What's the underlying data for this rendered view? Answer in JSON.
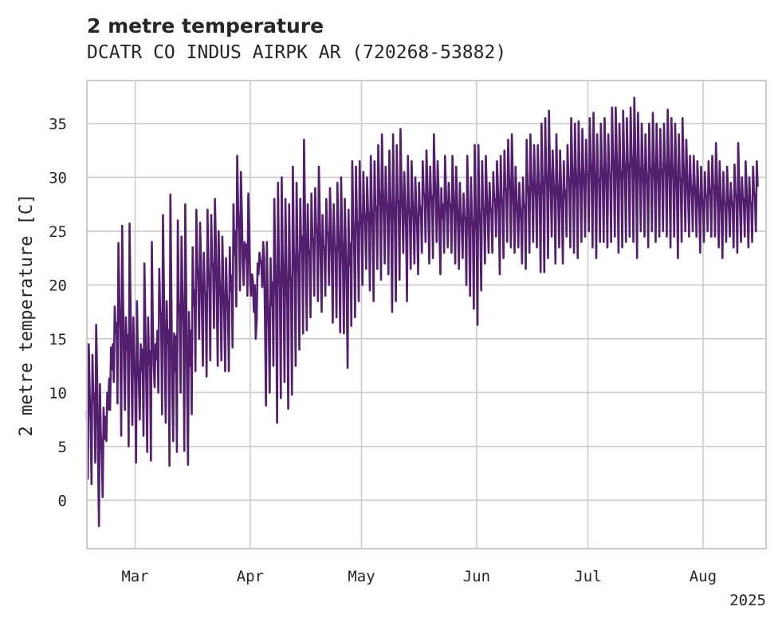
{
  "chart_data": {
    "type": "line",
    "title": "2 metre temperature",
    "subtitle": "DCATR CO INDUS AIRPK AR (720268-53882)",
    "ylabel": "2 metre temperature [C]",
    "xlabel": "",
    "x_offset_label": "2025",
    "xlim": [
      "2025-02-16",
      "2025-08-18"
    ],
    "ylim": [
      -4.5,
      39
    ],
    "grid": true,
    "legend": "none",
    "yticks": [
      0,
      5,
      10,
      15,
      20,
      25,
      30,
      35
    ],
    "xticks": [
      {
        "date": "2025-03-01",
        "label": "Mar"
      },
      {
        "date": "2025-04-01",
        "label": "Apr"
      },
      {
        "date": "2025-05-01",
        "label": "May"
      },
      {
        "date": "2025-06-01",
        "label": "Jun"
      },
      {
        "date": "2025-07-01",
        "label": "Jul"
      },
      {
        "date": "2025-08-01",
        "label": "Aug"
      }
    ],
    "line_color": "#531e6e",
    "series": [
      {
        "x": [
          "2025-02-16",
          "2025-02-17",
          "2025-02-18",
          "2025-02-19",
          "2025-02-20",
          "2025-02-21",
          "2025-02-22",
          "2025-02-23",
          "2025-02-24",
          "2025-02-25",
          "2025-02-26",
          "2025-02-27",
          "2025-02-28",
          "2025-03-01",
          "2025-03-02",
          "2025-03-03",
          "2025-03-04",
          "2025-03-05",
          "2025-03-06",
          "2025-03-07",
          "2025-03-08",
          "2025-03-09",
          "2025-03-10",
          "2025-03-11",
          "2025-03-12",
          "2025-03-13",
          "2025-03-14",
          "2025-03-15",
          "2025-03-16",
          "2025-03-17",
          "2025-03-18",
          "2025-03-19",
          "2025-03-20",
          "2025-03-21",
          "2025-03-22",
          "2025-03-23",
          "2025-03-24",
          "2025-03-25",
          "2025-03-26",
          "2025-03-27",
          "2025-03-28",
          "2025-03-29",
          "2025-03-30",
          "2025-03-31",
          "2025-04-01",
          "2025-04-02",
          "2025-04-03",
          "2025-04-04",
          "2025-04-05",
          "2025-04-06",
          "2025-04-07",
          "2025-04-08",
          "2025-04-09",
          "2025-04-10",
          "2025-04-11",
          "2025-04-12",
          "2025-04-13",
          "2025-04-14",
          "2025-04-15",
          "2025-04-16",
          "2025-04-17",
          "2025-04-18",
          "2025-04-19",
          "2025-04-20",
          "2025-04-21",
          "2025-04-22",
          "2025-04-23",
          "2025-04-24",
          "2025-04-25",
          "2025-04-26",
          "2025-04-27",
          "2025-04-28",
          "2025-04-29",
          "2025-04-30",
          "2025-05-01",
          "2025-05-02",
          "2025-05-03",
          "2025-05-04",
          "2025-05-05",
          "2025-05-06",
          "2025-05-07",
          "2025-05-08",
          "2025-05-09",
          "2025-05-10",
          "2025-05-11",
          "2025-05-12",
          "2025-05-13",
          "2025-05-14",
          "2025-05-15",
          "2025-05-16",
          "2025-05-17",
          "2025-05-18",
          "2025-05-19",
          "2025-05-20",
          "2025-05-21",
          "2025-05-22",
          "2025-05-23",
          "2025-05-24",
          "2025-05-25",
          "2025-05-26",
          "2025-05-27",
          "2025-05-28",
          "2025-05-29",
          "2025-05-30",
          "2025-05-31",
          "2025-06-01",
          "2025-06-02",
          "2025-06-03",
          "2025-06-04",
          "2025-06-05",
          "2025-06-06",
          "2025-06-07",
          "2025-06-08",
          "2025-06-09",
          "2025-06-10",
          "2025-06-11",
          "2025-06-12",
          "2025-06-13",
          "2025-06-14",
          "2025-06-15",
          "2025-06-16",
          "2025-06-17",
          "2025-06-18",
          "2025-06-19",
          "2025-06-20",
          "2025-06-21",
          "2025-06-22",
          "2025-06-23",
          "2025-06-24",
          "2025-06-25",
          "2025-06-26",
          "2025-06-27",
          "2025-06-28",
          "2025-06-29",
          "2025-06-30",
          "2025-07-01",
          "2025-07-02",
          "2025-07-03",
          "2025-07-04",
          "2025-07-05",
          "2025-07-06",
          "2025-07-07",
          "2025-07-08",
          "2025-07-09",
          "2025-07-10",
          "2025-07-11",
          "2025-07-12",
          "2025-07-13",
          "2025-07-14",
          "2025-07-15",
          "2025-07-16",
          "2025-07-17",
          "2025-07-18",
          "2025-07-19",
          "2025-07-20",
          "2025-07-21",
          "2025-07-22",
          "2025-07-23",
          "2025-07-24",
          "2025-07-25",
          "2025-07-26",
          "2025-07-27",
          "2025-07-28",
          "2025-07-29",
          "2025-07-30",
          "2025-07-31",
          "2025-08-01",
          "2025-08-02",
          "2025-08-03",
          "2025-08-04",
          "2025-08-05",
          "2025-08-06",
          "2025-08-07",
          "2025-08-08",
          "2025-08-09",
          "2025-08-10",
          "2025-08-11",
          "2025-08-12",
          "2025-08-13",
          "2025-08-14",
          "2025-08-15",
          "2025-08-16",
          "2025-08-17"
        ],
        "min": [
          2,
          1.5,
          3.5,
          -2.4,
          0.3,
          5.5,
          8.4,
          11,
          9,
          6,
          8.4,
          5,
          7,
          3.5,
          7.5,
          6,
          4.5,
          3.7,
          10.5,
          10,
          8,
          7.2,
          3.2,
          5.5,
          4.5,
          10,
          4.6,
          3.3,
          8,
          12,
          15,
          12.5,
          11.5,
          13,
          16,
          12.5,
          13,
          12,
          12,
          14.2,
          18,
          19.5,
          20,
          19,
          19,
          20,
          21,
          19.8,
          8.8,
          10,
          12.5,
          7.2,
          9.5,
          11,
          8.5,
          9.8,
          12.5,
          14,
          15.5,
          15.8,
          17,
          19,
          18.5,
          17.5,
          19,
          20,
          16.5,
          17,
          15.6,
          15.5,
          12.3,
          16.2,
          17,
          18.5,
          20,
          21.5,
          19.5,
          18.5,
          21.5,
          20.5,
          22,
          21,
          17.5,
          18.5,
          20.5,
          23,
          18.5,
          21.5,
          22,
          21,
          23,
          24,
          22,
          22.5,
          24,
          21,
          23,
          23.5,
          23,
          22,
          21.5,
          22.5,
          20,
          19,
          17.8,
          16.3,
          19.5,
          22,
          23,
          23,
          24.5,
          21,
          22.5,
          24,
          23.5,
          23,
          23.5,
          22,
          21.5,
          23,
          24,
          23.5,
          21.2,
          21.2,
          22.5,
          24.5,
          22,
          23.5,
          22,
          24.5,
          23.5,
          23,
          22.5,
          24,
          24.5,
          25,
          23.5,
          22.5,
          24,
          24,
          23.5,
          24,
          24.5,
          23,
          23.5,
          24,
          24.5,
          24,
          22.5,
          25,
          24.5,
          23.5,
          25,
          24,
          24.5,
          25,
          24.5,
          23.5,
          24.5,
          22.5,
          24,
          25,
          24.5,
          25,
          24.5,
          23,
          24,
          25,
          24.5,
          24.5,
          23.5,
          22.5,
          24,
          24.5,
          23.5,
          23,
          24,
          24.5,
          23.5,
          24,
          25
        ],
        "max": [
          14.5,
          13.5,
          16.3,
          10.8,
          8.6,
          10,
          14.2,
          18,
          23.9,
          25.5,
          17,
          25.7,
          17,
          18.5,
          14.5,
          22,
          17,
          24,
          14.5,
          21.5,
          26.5,
          18.5,
          28.4,
          15.5,
          26,
          24.5,
          27.5,
          17.5,
          23.5,
          27,
          25.8,
          23,
          27,
          26.5,
          28,
          25,
          24.5,
          22.5,
          23.5,
          27.5,
          32,
          30.5,
          24,
          28.5,
          21,
          15,
          23,
          24,
          24,
          22.5,
          28,
          29.5,
          30,
          28,
          27.5,
          31,
          29.5,
          28,
          33.5,
          27.5,
          28.5,
          29,
          31,
          26.5,
          28,
          29,
          27.5,
          29.5,
          30,
          28,
          27,
          31.5,
          31,
          31.5,
          30.5,
          30,
          32,
          31.5,
          33,
          34,
          31,
          32.5,
          34,
          33,
          34.5,
          30.5,
          32,
          31.5,
          30,
          29.5,
          31.5,
          32.5,
          31,
          34,
          31.5,
          29,
          32,
          29.5,
          32,
          31,
          29.5,
          28.5,
          32,
          30,
          33,
          33,
          31.5,
          32,
          29.5,
          30.5,
          31.5,
          32,
          32.5,
          33.5,
          34,
          31,
          29.5,
          30,
          33.5,
          34,
          33,
          33,
          35,
          35.5,
          36.2,
          32.5,
          34,
          32.5,
          31.5,
          33,
          35.5,
          35,
          35.2,
          34.5,
          33.5,
          35.5,
          36,
          34,
          35,
          35.5,
          34,
          36.5,
          36.5,
          35,
          36.2,
          35.5,
          36.5,
          37.4,
          36,
          35,
          34,
          35,
          36,
          35,
          34.5,
          35,
          36.3,
          35.5,
          35,
          34,
          35.5,
          33.5,
          32,
          32,
          31.5,
          31,
          30.5,
          31.5,
          32,
          33.2,
          31.5,
          30.5,
          31,
          29.5,
          31.2,
          33.2,
          30,
          31.5,
          30,
          31,
          31.5,
          30.5,
          33.2
        ]
      }
    ]
  }
}
